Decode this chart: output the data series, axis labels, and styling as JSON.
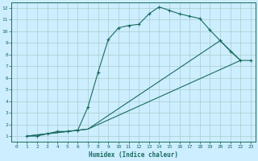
{
  "xlabel": "Humidex (Indice chaleur)",
  "bg_color": "#cceeff",
  "grid_color": "#aacccc",
  "line_color": "#1a6b60",
  "xlim": [
    -0.5,
    23.5
  ],
  "ylim": [
    0.5,
    12.5
  ],
  "xticks": [
    0,
    1,
    2,
    3,
    4,
    5,
    6,
    7,
    8,
    9,
    10,
    11,
    12,
    13,
    14,
    15,
    16,
    17,
    18,
    19,
    20,
    21,
    22,
    23
  ],
  "yticks": [
    1,
    2,
    3,
    4,
    5,
    6,
    7,
    8,
    9,
    10,
    11,
    12
  ],
  "curve1_x": [
    1,
    2,
    3,
    4,
    5,
    6,
    7,
    8,
    9,
    10,
    11,
    12,
    13,
    14,
    15,
    16,
    17,
    18,
    19,
    20,
    21,
    22,
    23
  ],
  "curve1_y": [
    1.0,
    1.0,
    1.2,
    1.4,
    1.4,
    1.5,
    3.5,
    6.5,
    9.3,
    10.3,
    10.5,
    10.6,
    11.5,
    12.1,
    11.8,
    11.5,
    11.3,
    11.1,
    10.1,
    9.2,
    8.3,
    7.5,
    7.5
  ],
  "curve2_x": [
    1,
    7,
    20,
    22
  ],
  "curve2_y": [
    1.0,
    1.6,
    9.2,
    7.5
  ],
  "curve3_x": [
    1,
    7,
    22
  ],
  "curve3_y": [
    1.0,
    1.6,
    7.5
  ]
}
